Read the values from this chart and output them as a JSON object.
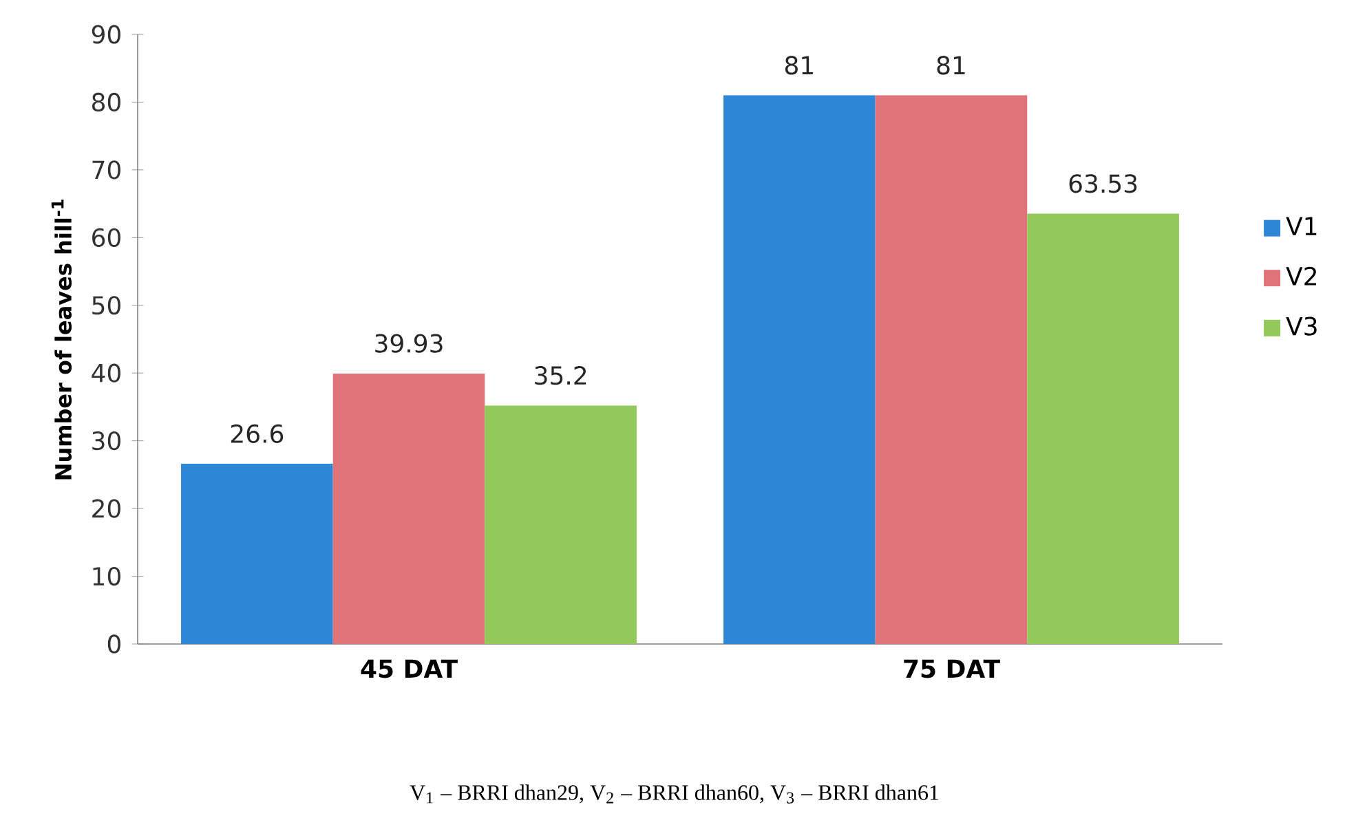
{
  "chart_data": {
    "type": "bar",
    "ylabel": "Number of leaves hill$^{-1}$",
    "categories": [
      "45 DAT",
      "75 DAT"
    ],
    "series": [
      {
        "name": "V1",
        "color": "#2e86d6",
        "values": [
          26.6,
          81
        ]
      },
      {
        "name": "V2",
        "color": "#e0737a",
        "values": [
          39.93,
          81
        ]
      },
      {
        "name": "V3",
        "color": "#92c95a",
        "values": [
          35.2,
          63.53
        ]
      }
    ],
    "ylim": [
      0,
      90
    ],
    "yticks": [
      0,
      10,
      20,
      30,
      40,
      50,
      60,
      70,
      80,
      90
    ],
    "data_labels": true,
    "legend": "right",
    "grid": false,
    "annotations": [
      "V$_{1}$ – BRRI dhan29, V$_{2}$ – BRRI dhan60, V$_{3}$ – BRRI dhan61"
    ]
  }
}
